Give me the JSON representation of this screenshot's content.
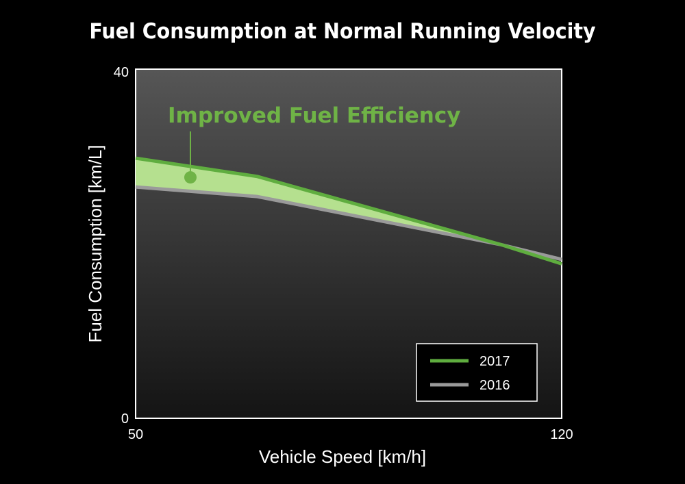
{
  "chart_data": {
    "type": "line",
    "title": "Fuel Consumption at Normal Running Velocity",
    "xlabel": "Vehicle Speed [km/h]",
    "ylabel": "Fuel Consumption [km/L]",
    "xlim": [
      50,
      120
    ],
    "ylim": [
      0,
      40
    ],
    "x_ticks": [
      "50",
      "120"
    ],
    "y_ticks": [
      "0",
      "40"
    ],
    "series": [
      {
        "name": "2017",
        "color": "#5fad3f",
        "x": [
          50,
          70,
          110,
          120
        ],
        "y": [
          29.8,
          27.7,
          19.9,
          17.7
        ]
      },
      {
        "name": "2016",
        "color": "#9a9a9a",
        "x": [
          50,
          70,
          110,
          120
        ],
        "y": [
          26.5,
          25.4,
          19.9,
          18.2
        ]
      }
    ],
    "fill_between": {
      "series": [
        "2017",
        "2016"
      ],
      "color": "#b5e08f",
      "x_end": 110
    },
    "annotation": {
      "text": "Improved Fuel Efficiency",
      "x": 59,
      "y": 27.6,
      "color": "#6fb346"
    },
    "legend": {
      "position": "bottom-right"
    },
    "grid": false,
    "plot_background": "gradient #555555 to #141414"
  }
}
